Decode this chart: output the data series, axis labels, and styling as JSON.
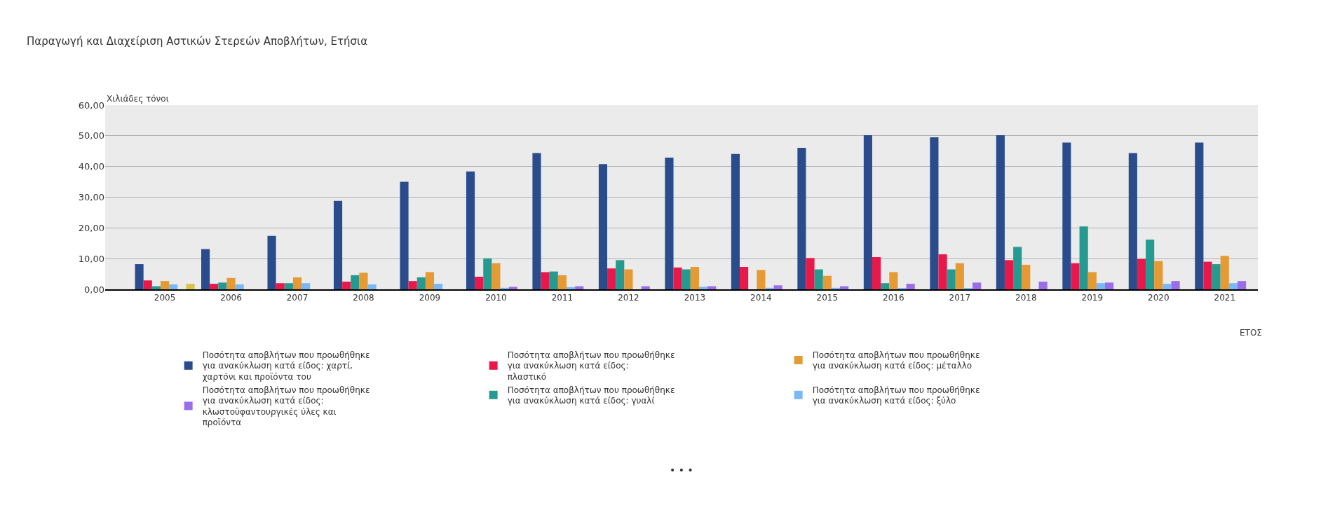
{
  "chart_data": {
    "type": "bar",
    "title": "Παραγωγή και Διαχείριση Αστικών Στερεών Αποβλήτων, Ετήσια",
    "xlabel": "ΕΤΟΣ",
    "ylabel": "Χιλιάδες τόνοι",
    "categories": [
      "2005",
      "2006",
      "2007",
      "2008",
      "2009",
      "2010",
      "2011",
      "2012",
      "2013",
      "2014",
      "2015",
      "2016",
      "2017",
      "2018",
      "2019",
      "2020",
      "2021"
    ],
    "series": [
      {
        "name": "Ποσότητα αποβλήτων που προωθήθηκε για ανακύκλωση κατά είδος: χαρτί, χαρτόνι και προϊόντα του",
        "color": "#2b4c8c",
        "values": [
          8.2,
          13.1,
          17.4,
          28.8,
          35.0,
          38.4,
          44.4,
          40.8,
          42.9,
          44.1,
          46.1,
          50.2,
          49.5,
          50.2,
          47.8,
          44.4,
          47.8
        ]
      },
      {
        "name": "Ποσότητα αποβλήτων που προωθήθηκε για ανακύκλωση κατά είδος: πλαστικό",
        "color": "#e8194a",
        "values": [
          2.9,
          1.8,
          2.0,
          2.5,
          2.7,
          4.1,
          5.6,
          6.8,
          7.1,
          7.3,
          10.2,
          10.5,
          11.4,
          9.5,
          8.5,
          9.9,
          9.0
        ]
      },
      {
        "name": "Ποσότητα αποβλήτων που προωθήθηκε για ανακύκλωση κατά είδος: γυαλί",
        "color": "#259a91",
        "values": [
          1.0,
          2.2,
          2.0,
          4.6,
          3.9,
          10.1,
          5.8,
          9.5,
          6.5,
          null,
          6.5,
          2.0,
          6.5,
          13.8,
          20.5,
          16.2,
          8.2
        ]
      },
      {
        "name": "Ποσότητα αποβλήτων που προωθήθηκε για ανακύκλωση κατά είδος: μέταλλο",
        "color": "#e59a34",
        "values": [
          2.7,
          3.7,
          3.9,
          5.4,
          5.6,
          8.5,
          4.6,
          6.5,
          7.3,
          6.3,
          4.4,
          5.6,
          8.5,
          8.0,
          5.6,
          9.2,
          10.9
        ]
      },
      {
        "name": "Ποσότητα αποβλήτων που προωθήθηκε για ανακύκλωση κατά είδος: ξύλο",
        "color": "#7ab8f5",
        "values": [
          1.6,
          1.6,
          2.0,
          1.6,
          1.8,
          0.5,
          0.7,
          null,
          0.8,
          0.5,
          0.5,
          0.4,
          0.4,
          null,
          2.0,
          1.8,
          2.0
        ]
      },
      {
        "name": "Ποσότητα αποβλήτων που προωθήθηκε για ανακύκλωση κατά είδος: κλωστοϋφαντουργικές ύλες και προϊόντα",
        "color": "#9a6ee8",
        "values": [
          null,
          null,
          null,
          null,
          null,
          0.8,
          1.0,
          1.0,
          1.0,
          1.3,
          1.0,
          1.8,
          2.2,
          2.5,
          2.2,
          2.7,
          2.7
        ]
      },
      {
        "color": "#d9c24a",
        "values": [
          1.8,
          null,
          null,
          null,
          null,
          null,
          null,
          null,
          null,
          null,
          null,
          null,
          null,
          null,
          null,
          null,
          null
        ]
      }
    ],
    "ylim": [
      0,
      60
    ],
    "yticks": [
      {
        "value": 0,
        "label": "0,00"
      },
      {
        "value": 10,
        "label": "10,00"
      },
      {
        "value": 20,
        "label": "20,00"
      },
      {
        "value": 30,
        "label": "30,00"
      },
      {
        "value": 40,
        "label": "40,00"
      },
      {
        "value": 50,
        "label": "50,00"
      },
      {
        "value": 60,
        "label": "60,00"
      }
    ],
    "grid": "y",
    "legend": "bottom",
    "annotations": [
      "• • •"
    ]
  }
}
